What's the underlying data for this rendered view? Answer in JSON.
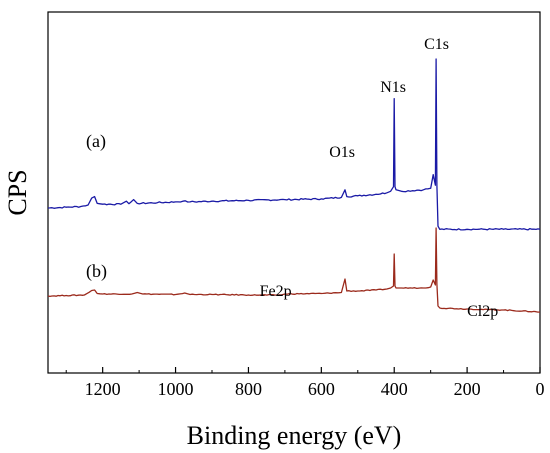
{
  "chart_data": {
    "type": "line",
    "xlabel": "Binding energy (eV)",
    "ylabel": "CPS",
    "xlim": [
      1350,
      0
    ],
    "x_reversed": true,
    "x_ticks": [
      1200,
      1000,
      800,
      600,
      400,
      200,
      0
    ],
    "x_tick_labels": [
      "1200",
      "1000",
      "800",
      "600",
      "400",
      "200",
      "0"
    ],
    "y_tick_labels_shown": false,
    "grid": false,
    "legend": "none",
    "series": [
      {
        "label": "(a)",
        "color": "#1a1aa6",
        "baseline_region": "top",
        "points": [
          [
            1350,
            0.0
          ],
          [
            1300,
            0.5
          ],
          [
            1260,
            1.0
          ],
          [
            1240,
            2.0
          ],
          [
            1230,
            6.5
          ],
          [
            1222,
            7.5
          ],
          [
            1215,
            3.0
          ],
          [
            1200,
            2.5
          ],
          [
            1150,
            2.5
          ],
          [
            1135,
            4.5
          ],
          [
            1128,
            2.8
          ],
          [
            1115,
            5.5
          ],
          [
            1105,
            3.0
          ],
          [
            1050,
            3.5
          ],
          [
            1000,
            4.0
          ],
          [
            980,
            4.5
          ],
          [
            960,
            4.0
          ],
          [
            900,
            4.5
          ],
          [
            800,
            5.0
          ],
          [
            700,
            5.5
          ],
          [
            600,
            6.0
          ],
          [
            545,
            7.0
          ],
          [
            535,
            12.0
          ],
          [
            530,
            7.5
          ],
          [
            500,
            8.0
          ],
          [
            450,
            9.0
          ],
          [
            420,
            10.0
          ],
          [
            410,
            11.0
          ],
          [
            402,
            14.0
          ],
          [
            400,
            72.0
          ],
          [
            398,
            14.0
          ],
          [
            395,
            12.0
          ],
          [
            380,
            11.0
          ],
          [
            320,
            12.0
          ],
          [
            300,
            13.0
          ],
          [
            293,
            22.0
          ],
          [
            287,
            15.0
          ],
          [
            285,
            98.0
          ],
          [
            283,
            15.0
          ],
          [
            280,
            -12.0
          ],
          [
            275,
            -14.0
          ],
          [
            200,
            -14.0
          ],
          [
            100,
            -14.0
          ],
          [
            0,
            -14.0
          ]
        ],
        "annotations": [
          {
            "text": "O1s",
            "x": 540
          },
          {
            "text": "N1s",
            "x": 400
          },
          {
            "text": "C1s",
            "x": 285
          }
        ]
      },
      {
        "label": "(b)",
        "color": "#9b2a1c",
        "baseline_region": "bottom",
        "points": [
          [
            1350,
            0.0
          ],
          [
            1300,
            0.5
          ],
          [
            1250,
            1.0
          ],
          [
            1230,
            5.5
          ],
          [
            1222,
            6.0
          ],
          [
            1215,
            2.5
          ],
          [
            1200,
            2.0
          ],
          [
            1120,
            2.0
          ],
          [
            1105,
            3.5
          ],
          [
            1090,
            2.0
          ],
          [
            1000,
            1.5
          ],
          [
            975,
            3.0
          ],
          [
            960,
            1.5
          ],
          [
            900,
            1.5
          ],
          [
            800,
            1.0
          ],
          [
            710,
            1.0
          ],
          [
            700,
            2.0
          ],
          [
            600,
            2.5
          ],
          [
            545,
            3.5
          ],
          [
            535,
            17.0
          ],
          [
            530,
            5.0
          ],
          [
            500,
            5.0
          ],
          [
            450,
            6.0
          ],
          [
            420,
            7.0
          ],
          [
            410,
            8.0
          ],
          [
            402,
            10.0
          ],
          [
            400,
            42.0
          ],
          [
            398,
            10.0
          ],
          [
            395,
            8.0
          ],
          [
            380,
            8.0
          ],
          [
            320,
            8.0
          ],
          [
            300,
            9.0
          ],
          [
            293,
            16.0
          ],
          [
            287,
            11.0
          ],
          [
            285,
            68.0
          ],
          [
            283,
            12.0
          ],
          [
            280,
            -10.0
          ],
          [
            275,
            -12.0
          ],
          [
            200,
            -13.0
          ],
          [
            100,
            -14.0
          ],
          [
            0,
            -16.0
          ]
        ],
        "annotations": [
          {
            "text": "Fe2p",
            "x": 720
          },
          {
            "text": "Cl2p",
            "x": 200
          }
        ]
      }
    ]
  }
}
